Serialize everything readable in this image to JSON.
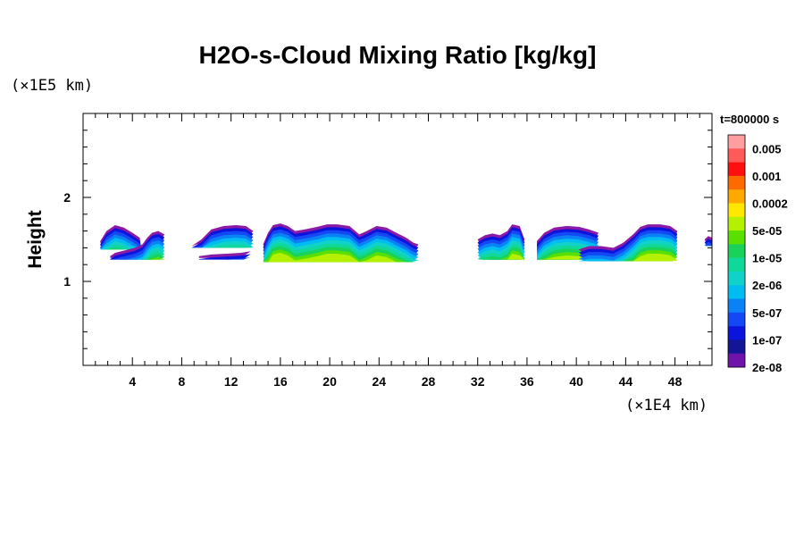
{
  "chart_data": {
    "type": "heatmap",
    "title": "H2O-s-Cloud Mixing Ratio [kg/kg]",
    "ylabel": "Height",
    "y_unit": "(×1E5 km)",
    "x_unit": "(×1E4 km)",
    "time_label": "t=800000 s",
    "xlim": [
      0,
      51
    ],
    "ylim": [
      0,
      3
    ],
    "x_ticks": [
      4,
      8,
      12,
      16,
      20,
      24,
      28,
      32,
      36,
      40,
      44,
      48
    ],
    "y_ticks": [
      1,
      2
    ],
    "legend_labels": [
      "0.005",
      "0.001",
      "0.0002",
      "5e-05",
      "1e-05",
      "2e-06",
      "5e-07",
      "1e-07",
      "2e-08"
    ],
    "color_scale": [
      "#ff9ea0",
      "#ff5a5a",
      "#ff1010",
      "#ff6a00",
      "#ffa800",
      "#ffe800",
      "#b4f000",
      "#5ae000",
      "#19d25a",
      "#10d79a",
      "#10d2c8",
      "#00bcf0",
      "#0a82f5",
      "#1448f5",
      "#0a14dc",
      "#141496",
      "#6e14aa"
    ],
    "cloud_layers": [
      {
        "color": "#8c1aa6",
        "dy": 0.0
      },
      {
        "color": "#0a14dc",
        "dy": 0.035
      },
      {
        "color": "#1448f5",
        "dy": 0.07
      },
      {
        "color": "#0a82f5",
        "dy": 0.11
      },
      {
        "color": "#00bcf0",
        "dy": 0.15
      },
      {
        "color": "#10d2c8",
        "dy": 0.19
      },
      {
        "color": "#10d79a",
        "dy": 0.23
      },
      {
        "color": "#19d25a",
        "dy": 0.27
      },
      {
        "color": "#5ae000",
        "dy": 0.31
      },
      {
        "color": "#b4f000",
        "dy": 0.35
      }
    ],
    "clouds": [
      {
        "x": [
          1.4,
          1.9,
          2.6,
          3.3,
          4.0,
          4.6,
          4.7,
          4.2,
          3.4,
          2.6,
          1.8,
          1.4
        ],
        "top": [
          1.48,
          1.6,
          1.67,
          1.64,
          1.58,
          1.52,
          1.4,
          1.44,
          1.47,
          1.46,
          1.46,
          1.46
        ]
      },
      {
        "x": [
          2.2,
          2.6,
          3.4,
          4.2,
          4.8,
          5.2,
          5.6,
          6.1,
          6.6,
          6.2,
          5.6,
          4.9,
          3.8,
          2.8,
          2.2
        ],
        "top": [
          1.3,
          1.34,
          1.37,
          1.4,
          1.44,
          1.52,
          1.58,
          1.6,
          1.56,
          1.46,
          1.36,
          1.3,
          1.28,
          1.28,
          1.28
        ]
      },
      {
        "x": [
          8.8,
          9.6,
          10.4,
          11.4,
          12.4,
          13.2,
          13.8,
          13.2,
          12.2,
          11.2,
          10.0,
          9.2,
          8.8
        ],
        "top": [
          1.42,
          1.5,
          1.62,
          1.66,
          1.67,
          1.66,
          1.6,
          1.5,
          1.44,
          1.46,
          1.46,
          1.44,
          1.42
        ]
      },
      {
        "x": [
          9.4,
          10.4,
          11.6,
          12.8,
          13.6,
          13.0,
          11.8,
          10.4,
          9.4
        ],
        "top": [
          1.3,
          1.32,
          1.33,
          1.34,
          1.36,
          1.3,
          1.28,
          1.28,
          1.28
        ]
      },
      {
        "x": [
          14.6,
          15.0,
          15.4,
          16.0,
          16.6,
          17.2,
          18.0,
          19.0,
          19.8,
          20.6,
          21.6,
          22.4,
          23.0,
          23.8,
          24.6,
          25.4,
          26.2,
          26.8,
          27.2,
          26.6,
          26.0,
          25.2,
          24.0,
          22.6,
          21.0,
          19.4,
          17.8,
          16.2,
          15.0,
          14.6
        ],
        "top": [
          1.44,
          1.58,
          1.67,
          1.69,
          1.66,
          1.6,
          1.62,
          1.65,
          1.68,
          1.68,
          1.66,
          1.56,
          1.6,
          1.66,
          1.64,
          1.58,
          1.52,
          1.46,
          1.44,
          1.33,
          1.28,
          1.3,
          1.32,
          1.26,
          1.25,
          1.25,
          1.26,
          1.28,
          1.34,
          1.44
        ]
      },
      {
        "x": [
          32.0,
          32.6,
          33.2,
          33.8,
          34.4,
          34.8,
          35.4,
          35.8,
          35.4,
          34.6,
          33.8,
          33.0,
          32.4,
          32.0
        ],
        "top": [
          1.5,
          1.55,
          1.57,
          1.55,
          1.6,
          1.68,
          1.66,
          1.5,
          1.38,
          1.3,
          1.28,
          1.3,
          1.38,
          1.5
        ]
      },
      {
        "x": [
          36.8,
          37.4,
          38.2,
          39.2,
          40.2,
          41.0,
          41.8,
          41.4,
          40.6,
          39.6,
          38.6,
          37.6,
          36.8
        ],
        "top": [
          1.48,
          1.58,
          1.64,
          1.66,
          1.65,
          1.62,
          1.58,
          1.48,
          1.42,
          1.36,
          1.3,
          1.28,
          1.34
        ]
      },
      {
        "x": [
          40.2,
          41.0,
          42.0,
          43.0,
          43.8,
          44.6,
          45.2,
          45.8,
          46.8,
          47.6,
          48.2,
          47.8,
          46.8,
          45.4,
          43.8,
          42.2,
          41.0,
          40.2
        ],
        "top": [
          1.38,
          1.42,
          1.42,
          1.4,
          1.46,
          1.56,
          1.65,
          1.68,
          1.68,
          1.66,
          1.6,
          1.44,
          1.36,
          1.32,
          1.29,
          1.26,
          1.3,
          1.38
        ]
      },
      {
        "x": [
          50.4,
          50.7,
          51.0,
          51.0,
          50.6,
          50.4
        ],
        "top": [
          1.5,
          1.54,
          1.52,
          1.46,
          1.44,
          1.5
        ]
      }
    ]
  }
}
